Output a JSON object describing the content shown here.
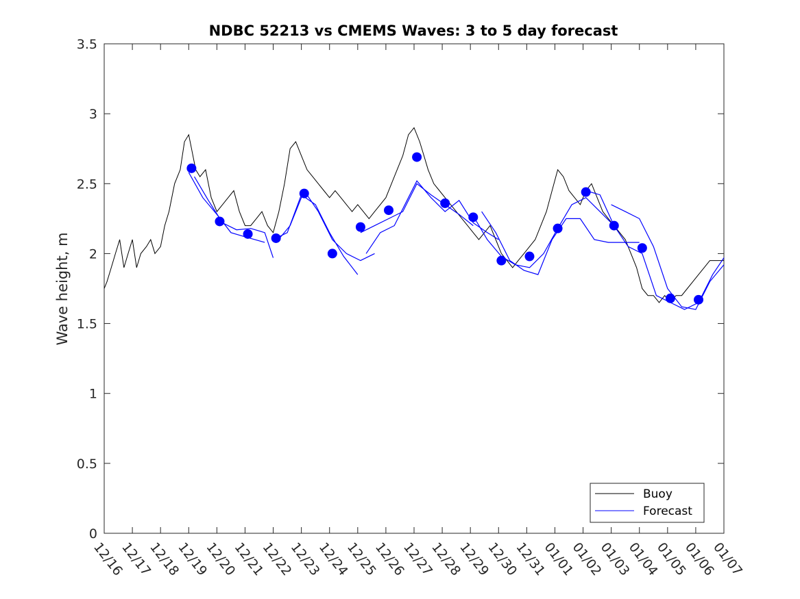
{
  "chart_data": {
    "type": "line",
    "title": "NDBC 52213 vs CMEMS Waves: 3 to 5 day forecast",
    "xlabel": "",
    "ylabel": "Wave height, m",
    "xlim": [
      0,
      22
    ],
    "ylim": [
      0,
      3.5
    ],
    "yticks": [
      0,
      0.5,
      1,
      1.5,
      2,
      2.5,
      3,
      3.5
    ],
    "ytick_labels": [
      "0",
      "0.5",
      "1",
      "1.5",
      "2",
      "2.5",
      "3",
      "3.5"
    ],
    "xticks": [
      0,
      1,
      2,
      3,
      4,
      5,
      6,
      7,
      8,
      9,
      10,
      11,
      12,
      13,
      14,
      15,
      16,
      17,
      18,
      19,
      20,
      21,
      22
    ],
    "xtick_labels": [
      "12/16",
      "12/17",
      "12/18",
      "12/19",
      "12/20",
      "12/21",
      "12/22",
      "12/23",
      "12/24",
      "12/25",
      "12/26",
      "12/27",
      "12/28",
      "12/29",
      "12/30",
      "12/31",
      "01/01",
      "01/02",
      "01/03",
      "01/04",
      "01/05",
      "01/06",
      "01/07"
    ],
    "legend": {
      "location": "bottom-right",
      "entries": [
        "Buoy",
        "Forecast"
      ]
    },
    "colors": {
      "buoy": "#000000",
      "forecast": "#0000ff"
    },
    "series": [
      {
        "name": "Buoy",
        "x": [
          0.0,
          0.1,
          0.25,
          0.4,
          0.55,
          0.7,
          0.85,
          1.0,
          1.15,
          1.3,
          1.5,
          1.65,
          1.8,
          2.0,
          2.15,
          2.3,
          2.5,
          2.7,
          2.85,
          3.0,
          3.1,
          3.25,
          3.4,
          3.6,
          3.8,
          4.0,
          4.2,
          4.4,
          4.6,
          4.8,
          5.0,
          5.2,
          5.4,
          5.6,
          5.8,
          6.0,
          6.2,
          6.4,
          6.6,
          6.8,
          7.0,
          7.2,
          7.4,
          7.6,
          7.8,
          8.0,
          8.2,
          8.4,
          8.6,
          8.8,
          9.0,
          9.2,
          9.4,
          9.6,
          9.8,
          10.0,
          10.2,
          10.4,
          10.6,
          10.8,
          11.0,
          11.2,
          11.35,
          11.5,
          11.7,
          11.9,
          12.1,
          12.3,
          12.5,
          12.7,
          12.9,
          13.1,
          13.3,
          13.5,
          13.7,
          13.9,
          14.1,
          14.3,
          14.5,
          14.7,
          14.9,
          15.1,
          15.3,
          15.5,
          15.7,
          15.9,
          16.1,
          16.3,
          16.5,
          16.7,
          16.9,
          17.1,
          17.3,
          17.5,
          17.7,
          17.9,
          18.1,
          18.3,
          18.5,
          18.7,
          18.9,
          19.1,
          19.3,
          19.5,
          19.7,
          19.9,
          20.1,
          20.3,
          20.5,
          20.7,
          20.9,
          21.1,
          21.3,
          21.5,
          21.7,
          21.9,
          22.0
        ],
        "y": [
          1.75,
          1.8,
          1.9,
          2.0,
          2.1,
          1.9,
          2.0,
          2.1,
          1.9,
          2.0,
          2.05,
          2.1,
          2.0,
          2.05,
          2.2,
          2.3,
          2.5,
          2.6,
          2.8,
          2.85,
          2.75,
          2.6,
          2.55,
          2.6,
          2.4,
          2.3,
          2.35,
          2.4,
          2.45,
          2.3,
          2.2,
          2.2,
          2.25,
          2.3,
          2.2,
          2.15,
          2.3,
          2.5,
          2.75,
          2.8,
          2.7,
          2.6,
          2.55,
          2.5,
          2.45,
          2.4,
          2.45,
          2.4,
          2.35,
          2.3,
          2.35,
          2.3,
          2.25,
          2.3,
          2.35,
          2.4,
          2.5,
          2.6,
          2.7,
          2.85,
          2.9,
          2.8,
          2.7,
          2.6,
          2.5,
          2.45,
          2.4,
          2.35,
          2.3,
          2.25,
          2.2,
          2.15,
          2.1,
          2.15,
          2.2,
          2.1,
          2.0,
          1.95,
          1.9,
          1.95,
          2.0,
          2.05,
          2.1,
          2.2,
          2.3,
          2.45,
          2.6,
          2.55,
          2.45,
          2.4,
          2.35,
          2.45,
          2.5,
          2.4,
          2.3,
          2.25,
          2.2,
          2.15,
          2.1,
          2.0,
          1.9,
          1.75,
          1.7,
          1.7,
          1.65,
          1.7,
          1.65,
          1.7,
          1.7,
          1.75,
          1.8,
          1.85,
          1.9,
          1.95,
          1.95,
          1.95,
          1.95
        ]
      },
      {
        "name": "Forecast",
        "segments": [
          {
            "x": [
              3.0,
              3.5,
              4.0,
              4.5,
              5.0,
              5.7
            ],
            "y": [
              2.58,
              2.4,
              2.28,
              2.15,
              2.12,
              2.08
            ]
          },
          {
            "x": [
              3.2,
              3.7,
              4.2,
              4.7,
              5.2,
              5.7,
              6.0
            ],
            "y": [
              2.55,
              2.38,
              2.22,
              2.17,
              2.18,
              2.15,
              1.97
            ]
          },
          {
            "x": [
              6.0,
              6.5,
              7.0,
              7.5,
              8.0,
              8.5,
              9.0
            ],
            "y": [
              2.1,
              2.15,
              2.42,
              2.35,
              2.15,
              1.98,
              1.85
            ]
          },
          {
            "x": [
              6.1,
              6.6,
              7.1,
              7.6,
              8.1,
              8.6,
              9.1,
              9.6
            ],
            "y": [
              2.08,
              2.2,
              2.45,
              2.3,
              2.1,
              2.0,
              1.95,
              2.0
            ]
          },
          {
            "x": [
              9.1,
              9.6,
              10.1,
              10.6,
              11.1,
              11.6,
              12.1,
              12.6,
              13.1
            ],
            "y": [
              2.15,
              2.2,
              2.25,
              2.3,
              2.5,
              2.42,
              2.35,
              2.28,
              2.2
            ]
          },
          {
            "x": [
              9.3,
              9.8,
              10.3,
              10.8,
              11.1,
              11.6,
              12.1,
              12.6,
              13.1,
              13.6,
              14.0
            ],
            "y": [
              2.0,
              2.15,
              2.2,
              2.4,
              2.52,
              2.4,
              2.3,
              2.38,
              2.22,
              2.15,
              2.1
            ]
          },
          {
            "x": [
              13.1,
              13.6,
              14.1,
              14.6,
              15.1,
              15.6,
              16.1,
              16.6,
              17.1,
              17.6,
              18.1
            ],
            "y": [
              2.27,
              2.1,
              1.98,
              1.92,
              1.9,
              2.0,
              2.18,
              2.35,
              2.4,
              2.3,
              2.2
            ]
          },
          {
            "x": [
              13.4,
              13.9,
              14.4,
              14.9,
              15.4,
              15.9,
              16.4,
              16.9,
              17.4,
              17.9,
              18.4,
              19.0
            ],
            "y": [
              2.3,
              2.15,
              1.95,
              1.88,
              1.85,
              2.1,
              2.25,
              2.25,
              2.1,
              2.08,
              2.08,
              2.08
            ]
          },
          {
            "x": [
              17.1,
              17.6,
              18.1,
              18.6,
              19.1,
              19.6,
              20.1,
              20.6,
              21.1,
              21.6,
              22.0
            ],
            "y": [
              2.45,
              2.42,
              2.2,
              2.05,
              2.0,
              1.7,
              1.65,
              1.6,
              1.65,
              1.85,
              1.97
            ]
          },
          {
            "x": [
              18.0,
              18.5,
              19.0,
              19.5,
              20.0,
              20.5,
              21.0,
              21.5,
              22.0
            ],
            "y": [
              2.35,
              2.3,
              2.25,
              2.05,
              1.75,
              1.62,
              1.6,
              1.8,
              1.92
            ]
          }
        ],
        "markers": {
          "x": [
            3.1,
            4.1,
            5.1,
            6.1,
            7.1,
            8.1,
            9.1,
            10.1,
            11.1,
            12.1,
            13.1,
            14.1,
            15.1,
            16.1,
            17.1,
            18.1,
            19.1,
            20.1,
            21.1
          ],
          "y": [
            2.61,
            2.23,
            2.14,
            2.11,
            2.43,
            2.0,
            2.19,
            2.31,
            2.69,
            2.36,
            2.26,
            1.95,
            1.98,
            2.18,
            2.44,
            2.2,
            2.04,
            1.68,
            1.67
          ]
        }
      }
    ]
  }
}
